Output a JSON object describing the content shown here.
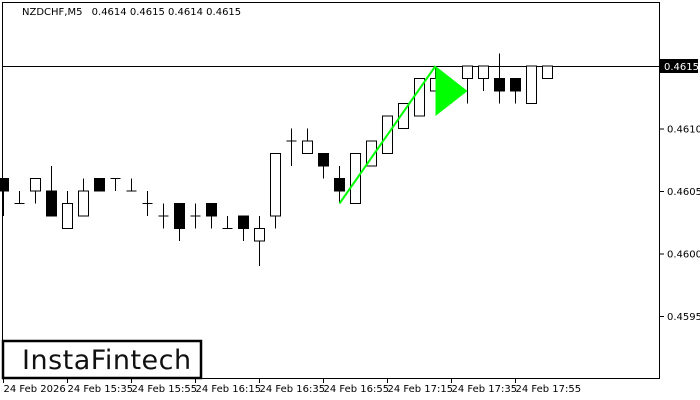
{
  "header": {
    "symbol": "NZDCHF,M5",
    "ohlc": "0.4614 0.4615 0.4614 0.4615"
  },
  "logo": {
    "text": "InstaFintech"
  },
  "chart_data": {
    "type": "candlestick",
    "title": "NZDCHF,M5  0.4614 0.4615 0.4614 0.4615",
    "ylim": [
      0.4589,
      0.462
    ],
    "y_ticks": [
      "0.4615",
      "0.4610",
      "0.4605",
      "0.4600",
      "0.4595"
    ],
    "current_price": "0.4615",
    "x_tick_labels": [
      "24 Feb 2026",
      "24 Feb 15:35",
      "24 Feb 15:55",
      "24 Feb 16:15",
      "24 Feb 16:35",
      "24 Feb 16:55",
      "24 Feb 17:15",
      "24 Feb 17:35",
      "24 Feb 17:55"
    ],
    "x_tick_every_candles": 4,
    "candles": [
      {
        "o": 0.4606,
        "h": 0.4606,
        "l": 0.4603,
        "c": 0.4605
      },
      {
        "o": 0.4604,
        "h": 0.4605,
        "l": 0.4604,
        "c": 0.4604
      },
      {
        "o": 0.4605,
        "h": 0.4606,
        "l": 0.4604,
        "c": 0.4606
      },
      {
        "o": 0.4605,
        "h": 0.4607,
        "l": 0.4603,
        "c": 0.4603
      },
      {
        "o": 0.4602,
        "h": 0.4605,
        "l": 0.4602,
        "c": 0.4604
      },
      {
        "o": 0.4603,
        "h": 0.4606,
        "l": 0.4603,
        "c": 0.4605
      },
      {
        "o": 0.4606,
        "h": 0.4606,
        "l": 0.4605,
        "c": 0.4605
      },
      {
        "o": 0.4606,
        "h": 0.4606,
        "l": 0.4605,
        "c": 0.4606
      },
      {
        "o": 0.4605,
        "h": 0.4606,
        "l": 0.4605,
        "c": 0.4605
      },
      {
        "o": 0.4604,
        "h": 0.4605,
        "l": 0.4603,
        "c": 0.4604
      },
      {
        "o": 0.4603,
        "h": 0.4604,
        "l": 0.4602,
        "c": 0.4603
      },
      {
        "o": 0.4604,
        "h": 0.4604,
        "l": 0.4601,
        "c": 0.4602
      },
      {
        "o": 0.4603,
        "h": 0.4604,
        "l": 0.4602,
        "c": 0.4603
      },
      {
        "o": 0.4604,
        "h": 0.4604,
        "l": 0.4602,
        "c": 0.4603
      },
      {
        "o": 0.4602,
        "h": 0.4603,
        "l": 0.4602,
        "c": 0.4602
      },
      {
        "o": 0.4603,
        "h": 0.4603,
        "l": 0.4601,
        "c": 0.4602
      },
      {
        "o": 0.4601,
        "h": 0.4603,
        "l": 0.4599,
        "c": 0.4602
      },
      {
        "o": 0.4603,
        "h": 0.4608,
        "l": 0.4602,
        "c": 0.4608
      },
      {
        "o": 0.4609,
        "h": 0.461,
        "l": 0.4607,
        "c": 0.4609
      },
      {
        "o": 0.4608,
        "h": 0.461,
        "l": 0.4608,
        "c": 0.4609
      },
      {
        "o": 0.4608,
        "h": 0.4608,
        "l": 0.4606,
        "c": 0.4607
      },
      {
        "o": 0.4606,
        "h": 0.4607,
        "l": 0.4604,
        "c": 0.4605
      },
      {
        "o": 0.4604,
        "h": 0.4608,
        "l": 0.4604,
        "c": 0.4608
      },
      {
        "o": 0.4607,
        "h": 0.4609,
        "l": 0.4607,
        "c": 0.4609
      },
      {
        "o": 0.4608,
        "h": 0.4611,
        "l": 0.4608,
        "c": 0.4611
      },
      {
        "o": 0.461,
        "h": 0.4612,
        "l": 0.461,
        "c": 0.4612
      },
      {
        "o": 0.4611,
        "h": 0.4614,
        "l": 0.4611,
        "c": 0.4614
      },
      {
        "o": 0.4613,
        "h": 0.4615,
        "l": 0.4613,
        "c": 0.4614
      },
      {
        "o": 0.4613,
        "h": 0.4614,
        "l": 0.4612,
        "c": 0.4613
      },
      {
        "o": 0.4614,
        "h": 0.4615,
        "l": 0.4612,
        "c": 0.4615
      },
      {
        "o": 0.4614,
        "h": 0.4615,
        "l": 0.4613,
        "c": 0.4615
      },
      {
        "o": 0.4614,
        "h": 0.4616,
        "l": 0.4612,
        "c": 0.4613
      },
      {
        "o": 0.4614,
        "h": 0.4614,
        "l": 0.4612,
        "c": 0.4613
      },
      {
        "o": 0.4612,
        "h": 0.4615,
        "l": 0.4612,
        "c": 0.4615
      },
      {
        "o": 0.4614,
        "h": 0.4615,
        "l": 0.4614,
        "c": 0.4615
      }
    ],
    "pattern": {
      "color": "#00ff00",
      "pole": [
        [
          21,
          0.4604
        ],
        [
          27,
          0.4615
        ]
      ],
      "flag": [
        [
          27,
          0.4615
        ],
        [
          27,
          0.4611
        ],
        [
          29,
          0.4613
        ]
      ]
    },
    "grid": false
  }
}
